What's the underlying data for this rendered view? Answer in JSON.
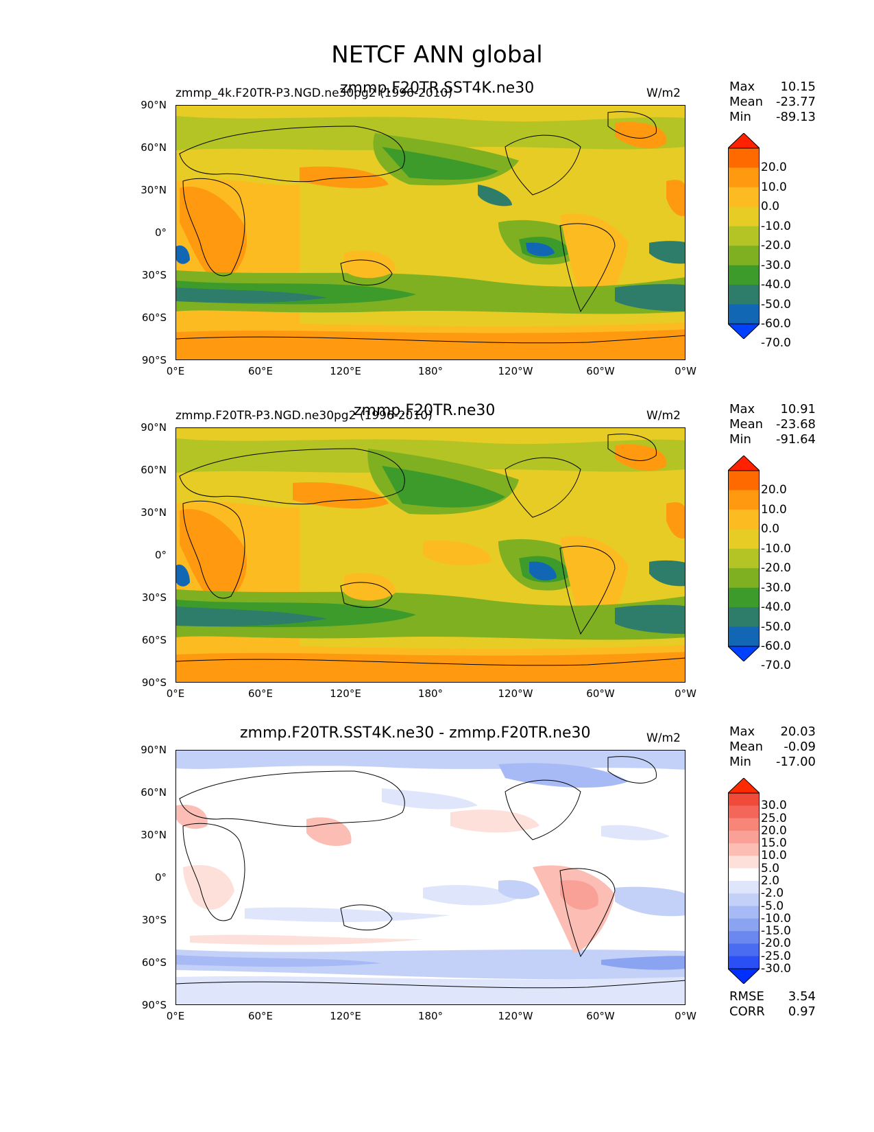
{
  "title": "NETCF ANN global",
  "axes": {
    "y_ticks": [
      "90°N",
      "60°N",
      "30°N",
      "0°",
      "30°S",
      "60°S",
      "90°S"
    ],
    "x_ticks": [
      "0°E",
      "60°E",
      "120°E",
      "180°",
      "120°W",
      "60°W",
      "0°W"
    ]
  },
  "panels": [
    {
      "left_title": "zmmp_4k.F20TR-P3.NGD.ne30pg2 (1996-2010)",
      "center_title": "zmmp.F20TR.SST4K.ne30",
      "units": "W/m2",
      "stats": [
        {
          "label": "Max",
          "value": "10.15"
        },
        {
          "label": "Mean",
          "value": "-23.77"
        },
        {
          "label": "Min",
          "value": "-89.13"
        }
      ],
      "colorbar_labels": [
        "20.0",
        "10.0",
        "0.0",
        "-10.0",
        "-20.0",
        "-30.0",
        "-40.0",
        "-50.0",
        "-60.0",
        "-70.0"
      ],
      "colorbar_colors": [
        "#ff2200",
        "#ff6a00",
        "#ff9a10",
        "#fdbb22",
        "#e6cc25",
        "#b3c424",
        "#7fb022",
        "#3d9b2c",
        "#2e7c6a",
        "#1267b5",
        "#0040ff"
      ]
    },
    {
      "left_title": "zmmp.F20TR-P3.NGD.ne30pg2 (1996-2010)",
      "center_title": "zmmp.F20TR.ne30",
      "units": "W/m2",
      "stats": [
        {
          "label": "Max",
          "value": "10.91"
        },
        {
          "label": "Mean",
          "value": "-23.68"
        },
        {
          "label": "Min",
          "value": "-91.64"
        }
      ],
      "colorbar_labels": [
        "20.0",
        "10.0",
        "0.0",
        "-10.0",
        "-20.0",
        "-30.0",
        "-40.0",
        "-50.0",
        "-60.0",
        "-70.0"
      ],
      "colorbar_colors": [
        "#ff2200",
        "#ff6a00",
        "#ff9a10",
        "#fdbb22",
        "#e6cc25",
        "#b3c424",
        "#7fb022",
        "#3d9b2c",
        "#2e7c6a",
        "#1267b5",
        "#0040ff"
      ]
    },
    {
      "left_title": "",
      "center_title": "zmmp.F20TR.SST4K.ne30 - zmmp.F20TR.ne30",
      "units": "W/m2",
      "stats": [
        {
          "label": "Max",
          "value": "20.03"
        },
        {
          "label": "Mean",
          "value": "-0.09"
        },
        {
          "label": "Min",
          "value": "-17.00"
        }
      ],
      "colorbar_labels": [
        "30.0",
        "25.0",
        "20.0",
        "15.0",
        "10.0",
        "5.0",
        "2.0",
        "-2.0",
        "-5.0",
        "-10.0",
        "-15.0",
        "-20.0",
        "-25.0",
        "-30.0"
      ],
      "colorbar_colors": [
        "#ff2a00",
        "#f04a3a",
        "#f5665a",
        "#f78578",
        "#f9a196",
        "#fbbdb4",
        "#fde0da",
        "#ffffff",
        "#dfe6fb",
        "#c3d0f8",
        "#a7baf5",
        "#8ba4f2",
        "#6b88f0",
        "#4a6cf0",
        "#2a50f5",
        "#0030ff"
      ],
      "bottom_stats": [
        {
          "label": "RMSE",
          "value": "3.54"
        },
        {
          "label": "CORR",
          "value": "0.97"
        }
      ]
    }
  ],
  "chart_data": [
    {
      "type": "heatmap",
      "title": "zmmp.F20TR.SST4K.ne30",
      "variable": "NETCF",
      "season": "ANN",
      "units": "W/m2",
      "xlim": [
        0,
        360
      ],
      "ylim": [
        -90,
        90
      ],
      "levels": [
        -70,
        -60,
        -50,
        -40,
        -30,
        -20,
        -10,
        0,
        10,
        20
      ],
      "max": 10.15,
      "mean": -23.77,
      "min": -89.13
    },
    {
      "type": "heatmap",
      "title": "zmmp.F20TR.ne30",
      "variable": "NETCF",
      "season": "ANN",
      "units": "W/m2",
      "xlim": [
        0,
        360
      ],
      "ylim": [
        -90,
        90
      ],
      "levels": [
        -70,
        -60,
        -50,
        -40,
        -30,
        -20,
        -10,
        0,
        10,
        20
      ],
      "max": 10.91,
      "mean": -23.68,
      "min": -91.64
    },
    {
      "type": "heatmap",
      "title": "zmmp.F20TR.SST4K.ne30 - zmmp.F20TR.ne30",
      "variable": "NETCF difference",
      "season": "ANN",
      "units": "W/m2",
      "xlim": [
        0,
        360
      ],
      "ylim": [
        -90,
        90
      ],
      "levels": [
        -30,
        -25,
        -20,
        -15,
        -10,
        -5,
        -2,
        2,
        5,
        10,
        15,
        20,
        25,
        30
      ],
      "max": 20.03,
      "mean": -0.09,
      "min": -17.0,
      "rmse": 3.54,
      "corr": 0.97
    }
  ]
}
